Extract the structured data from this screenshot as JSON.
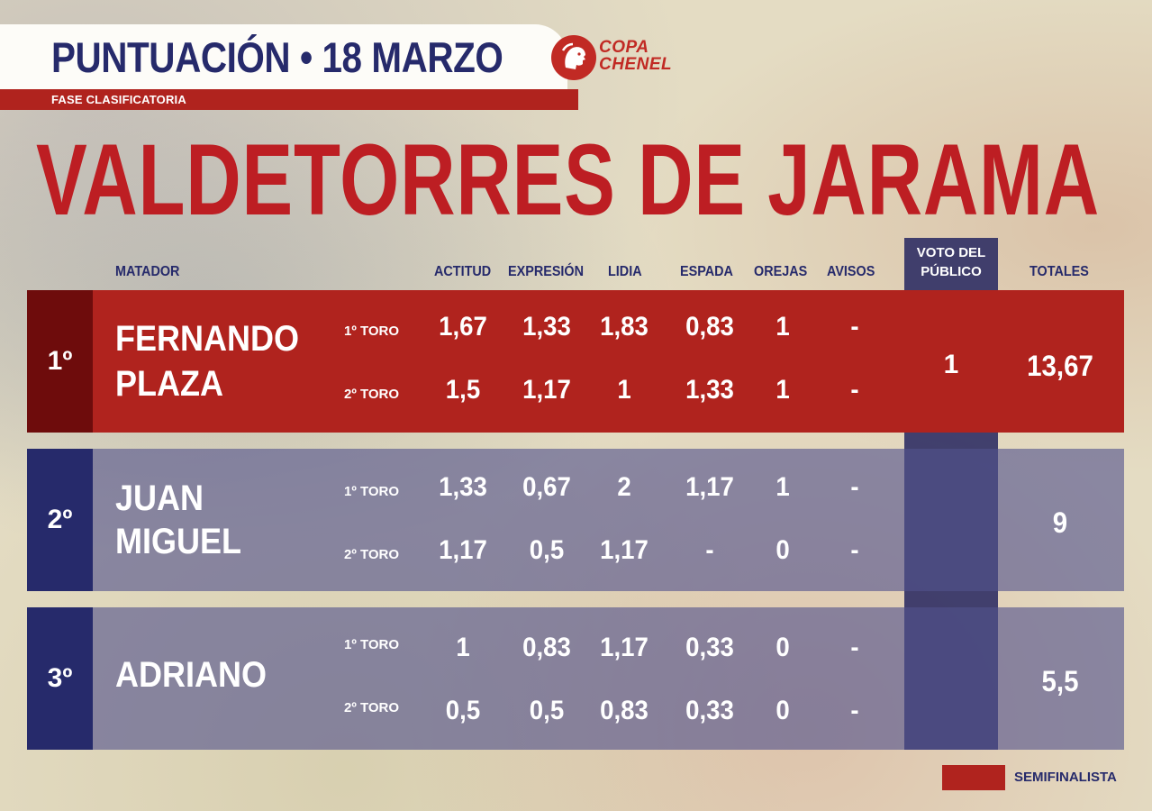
{
  "header": {
    "title": "PUNTUACIÓN • 18 MARZO",
    "phase": "FASE CLASIFICATORIA",
    "logo": {
      "line1": "COPA",
      "line2": "CHENEL",
      "icon": "bull-head-icon"
    }
  },
  "town": "VALDETORRES DE JARAMA",
  "columns": {
    "matador": "MATADOR",
    "actitud": "ACTITUD",
    "expresion": "EXPRESIÓN",
    "lidia": "LIDIA",
    "espada": "ESPADA",
    "orejas": "OREJAS",
    "avisos": "AVISOS",
    "voto_line1": "VOTO DEL",
    "voto_line2": "PÚBLICO",
    "totales": "TOTALES"
  },
  "rows": [
    {
      "rank": "1º",
      "name_line1": "FERNANDO",
      "name_line2": "PLAZA",
      "semifinalist": true,
      "toro1": {
        "label": "1º TORO",
        "actitud": "1,67",
        "expresion": "1,33",
        "lidia": "1,83",
        "espada": "0,83",
        "orejas": "1",
        "avisos": "-"
      },
      "toro2": {
        "label": "2º TORO",
        "actitud": "1,5",
        "expresion": "1,17",
        "lidia": "1",
        "espada": "1,33",
        "orejas": "1",
        "avisos": "-"
      },
      "voto": "1",
      "total": "13,67"
    },
    {
      "rank": "2º",
      "name_line1": "JUAN",
      "name_line2": "MIGUEL",
      "semifinalist": false,
      "toro1": {
        "label": "1º TORO",
        "actitud": "1,33",
        "expresion": "0,67",
        "lidia": "2",
        "espada": "1,17",
        "orejas": "1",
        "avisos": "-"
      },
      "toro2": {
        "label": "2º TORO",
        "actitud": "1,17",
        "expresion": "0,5",
        "lidia": "1,17",
        "espada": "-",
        "orejas": "0",
        "avisos": "-"
      },
      "voto": "",
      "total": "9"
    },
    {
      "rank": "3º",
      "name_line1": "ADRIANO",
      "name_line2": "",
      "semifinalist": false,
      "toro1": {
        "label": "1º TORO",
        "actitud": "1",
        "expresion": "0,83",
        "lidia": "1,17",
        "espada": "0,33",
        "orejas": "0",
        "avisos": "-"
      },
      "toro2": {
        "label": "2º TORO",
        "actitud": "0,5",
        "expresion": "0,5",
        "lidia": "0,83",
        "espada": "0,33",
        "orejas": "0",
        "avisos": "-"
      },
      "voto": "",
      "total": "5,5"
    }
  ],
  "legend": {
    "label": "SEMIFINALISTA",
    "color": "#b0231e"
  },
  "colors": {
    "navy": "#262a6b",
    "red": "#b0231e",
    "dark_red": "#6e0c0c",
    "title_red": "#bd1e23"
  }
}
